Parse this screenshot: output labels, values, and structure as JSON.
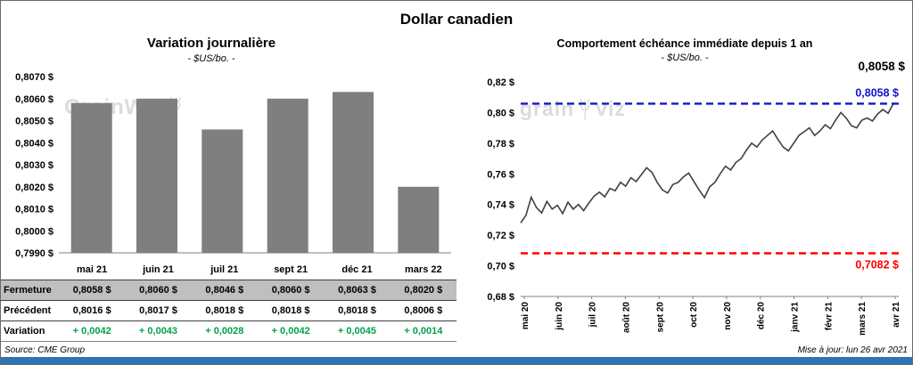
{
  "page": {
    "title": "Dollar canadien",
    "source": "Source: CME Group",
    "updated": "Mise à jour: lun 26 avr 2021",
    "accent_bar_color": "#2E74B5"
  },
  "watermarks": {
    "left": "GrainWiz",
    "right_a": "grain",
    "right_b": "viz"
  },
  "table": {
    "columns": [
      "mai 21",
      "juin 21",
      "juil 21",
      "sept 21",
      "déc 21",
      "mars 22"
    ],
    "rows": [
      {
        "label": "Fermeture",
        "values": [
          "0,8058 $",
          "0,8060 $",
          "0,8046 $",
          "0,8060 $",
          "0,8063 $",
          "0,8020 $"
        ]
      },
      {
        "label": "Précédent",
        "values": [
          "0,8016 $",
          "0,8017 $",
          "0,8018 $",
          "0,8018 $",
          "0,8018 $",
          "0,8006 $"
        ]
      },
      {
        "label": "Variation",
        "values": [
          "+ 0,0042",
          "+ 0,0043",
          "+ 0,0028",
          "+ 0,0042",
          "+ 0,0045",
          "+ 0,0014"
        ]
      }
    ],
    "variation_color": "#00A14B",
    "fermeture_row_bg": "#BFBFBF"
  },
  "chart_data": [
    {
      "type": "bar",
      "title": "Variation journalière",
      "subtitle": "- $US/bo. -",
      "categories": [
        "mai 21",
        "juin 21",
        "juil 21",
        "sept 21",
        "déc 21",
        "mars 22"
      ],
      "values": [
        0.8058,
        0.806,
        0.8046,
        0.806,
        0.8063,
        0.802
      ],
      "ylim": [
        0.799,
        0.807
      ],
      "ytick_step": 0.001,
      "ytick_labels": [
        "0,7990 $",
        "0,8000 $",
        "0,8010 $",
        "0,8020 $",
        "0,8030 $",
        "0,8040 $",
        "0,8050 $",
        "0,8060 $",
        "0,8070 $"
      ],
      "bar_color": "#7F7F7F",
      "grid": false,
      "legend": false
    },
    {
      "type": "line",
      "title": "Comportement échéance immédiate depuis 1 an",
      "subtitle": "- $US/bo. -",
      "x_labels": [
        "mai 20",
        "juin 20",
        "juil 20",
        "août 20",
        "sept 20",
        "oct 20",
        "nov 20",
        "déc 20",
        "janv 21",
        "févr 21",
        "mars 21",
        "avr 21"
      ],
      "values": [
        0.728,
        0.733,
        0.7448,
        0.738,
        0.7345,
        0.742,
        0.737,
        0.7395,
        0.734,
        0.7415,
        0.737,
        0.74,
        0.736,
        0.741,
        0.7455,
        0.748,
        0.745,
        0.7505,
        0.749,
        0.7545,
        0.752,
        0.7575,
        0.755,
        0.7595,
        0.764,
        0.761,
        0.7545,
        0.7495,
        0.7475,
        0.753,
        0.7545,
        0.758,
        0.7605,
        0.755,
        0.7495,
        0.7445,
        0.7515,
        0.7545,
        0.76,
        0.765,
        0.7625,
        0.7675,
        0.77,
        0.7755,
        0.78,
        0.7775,
        0.782,
        0.785,
        0.788,
        0.7825,
        0.7775,
        0.775,
        0.78,
        0.785,
        0.7875,
        0.79,
        0.785,
        0.788,
        0.792,
        0.7895,
        0.795,
        0.8,
        0.7965,
        0.7915,
        0.79,
        0.795,
        0.7965,
        0.7945,
        0.799,
        0.802,
        0.7995,
        0.8058
      ],
      "ylim": [
        0.68,
        0.82
      ],
      "ytick_step": 0.02,
      "ytick_labels": [
        "0,68 $",
        "0,70 $",
        "0,72 $",
        "0,74 $",
        "0,76 $",
        "0,78 $",
        "0,80 $",
        "0,82 $"
      ],
      "line_color": "#404040",
      "ref_lines": [
        {
          "value": 0.8058,
          "label": "0,8058 $",
          "color": "#1414CC",
          "label_side": "above"
        },
        {
          "value": 0.7082,
          "label": "0,7082 $",
          "color": "#FF0000",
          "label_side": "below"
        }
      ],
      "end_label": "0,8058 $",
      "grid": false,
      "legend": false
    }
  ]
}
